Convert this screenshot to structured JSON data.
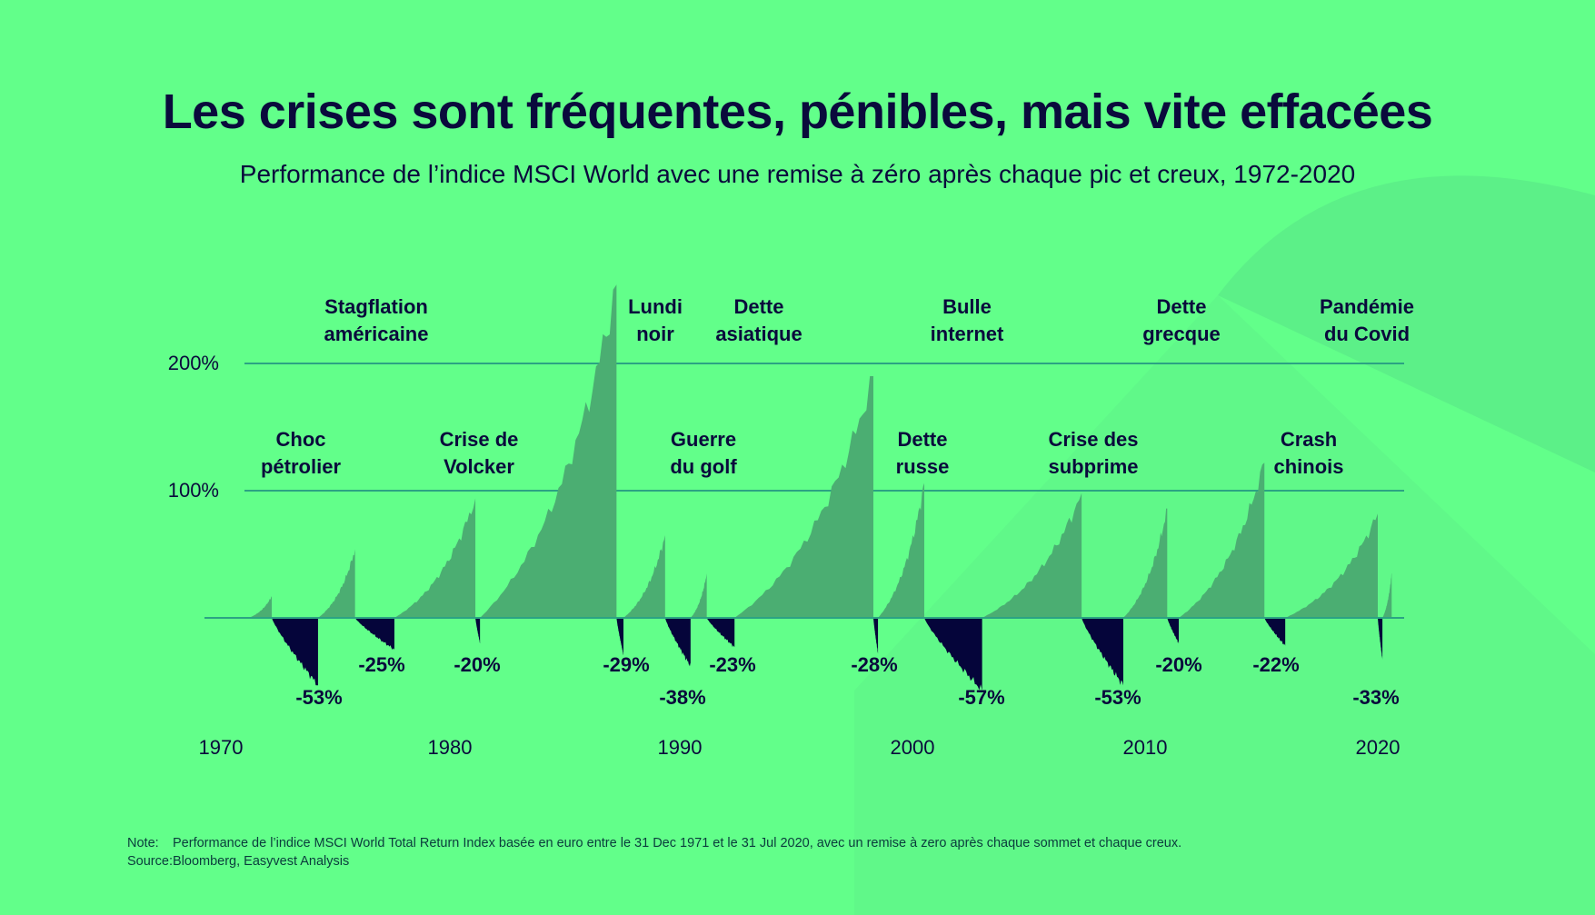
{
  "title": "Les crises sont fréquentes, pénibles, mais vite effacées",
  "subtitle": "Performance de l’indice MSCI World avec une remise à zéro après chaque pic et creux, 1972-2020",
  "colors": {
    "background": "#62ff8a",
    "rise": "#4bae72",
    "drawdown": "#05053a",
    "grid": "#2ba383",
    "text": "#0a0a3c"
  },
  "chart_data": {
    "type": "area",
    "title": "",
    "xlabel": "",
    "ylabel": "",
    "xlim": [
      1970,
      2021
    ],
    "ylim": [
      -60,
      270
    ],
    "x_ticks": [
      "1970",
      "1980",
      "1990",
      "2000",
      "2010",
      "2020"
    ],
    "y_ticks": [
      "100%",
      "200%"
    ],
    "y_tick_values": [
      100,
      200
    ],
    "grid": "horizontal",
    "segments": [
      {
        "start": 1971.2,
        "end": 1972.2,
        "value": 17
      },
      {
        "start": 1972.2,
        "end": 1974.2,
        "value": -53
      },
      {
        "start": 1974.2,
        "end": 1975.8,
        "value": 54
      },
      {
        "start": 1975.8,
        "end": 1977.5,
        "value": -25
      },
      {
        "start": 1977.5,
        "end": 1981.0,
        "value": 94
      },
      {
        "start": 1981.0,
        "end": 1981.2,
        "value": -20
      },
      {
        "start": 1981.2,
        "end": 1987.1,
        "value": 262
      },
      {
        "start": 1987.1,
        "end": 1987.4,
        "value": -29
      },
      {
        "start": 1987.4,
        "end": 1989.2,
        "value": 65
      },
      {
        "start": 1989.2,
        "end": 1990.3,
        "value": -38
      },
      {
        "start": 1990.3,
        "end": 1991.0,
        "value": 35
      },
      {
        "start": 1991.0,
        "end": 1992.2,
        "value": -23
      },
      {
        "start": 1992.2,
        "end": 1998.2,
        "value": 190
      },
      {
        "start": 1998.2,
        "end": 1998.4,
        "value": -28
      },
      {
        "start": 1998.4,
        "end": 2000.4,
        "value": 106
      },
      {
        "start": 2000.4,
        "end": 2002.9,
        "value": -57
      },
      {
        "start": 2002.9,
        "end": 2007.2,
        "value": 98
      },
      {
        "start": 2007.2,
        "end": 2009.0,
        "value": -53
      },
      {
        "start": 2009.0,
        "end": 2010.9,
        "value": 86
      },
      {
        "start": 2010.9,
        "end": 2011.4,
        "value": -20
      },
      {
        "start": 2011.4,
        "end": 2015.1,
        "value": 122
      },
      {
        "start": 2015.1,
        "end": 2016.0,
        "value": -22
      },
      {
        "start": 2016.0,
        "end": 2020.0,
        "value": 82
      },
      {
        "start": 2020.0,
        "end": 2020.2,
        "value": -33
      },
      {
        "start": 2020.2,
        "end": 2020.6,
        "value": 35
      }
    ],
    "annotations": [
      {
        "l1": "Stagflation",
        "l2": "américaine"
      },
      {
        "l1": "Lundi",
        "l2": "noir"
      },
      {
        "l1": "Dette",
        "l2": "asiatique"
      },
      {
        "l1": "Bulle",
        "l2": "internet"
      },
      {
        "l1": "Dette",
        "l2": "grecque"
      },
      {
        "l1": "Pandémie",
        "l2": "du Covid"
      },
      {
        "l1": "Choc",
        "l2": "pétrolier"
      },
      {
        "l1": "Crise de",
        "l2": "Volcker"
      },
      {
        "l1": "Guerre",
        "l2": "du golf"
      },
      {
        "l1": "Dette",
        "l2": "russe"
      },
      {
        "l1": "Crise des",
        "l2": "subprime"
      },
      {
        "l1": "Crash",
        "l2": "chinois"
      }
    ],
    "drawdown_labels": [
      "-53%",
      "-25%",
      "-20%",
      "-29%",
      "-38%",
      "-23%",
      "-28%",
      "-57%",
      "-53%",
      "-20%",
      "-22%",
      "-33%"
    ]
  },
  "footer": {
    "note_key": "Note:",
    "note": "Performance de l’indice MSCI World Total Return Index basée en euro entre le 31 Dec 1971 et le 31 Jul 2020, avec un remise à zero après chaque sommet et chaque creux.",
    "source_key": "Source:",
    "source": "Bloomberg, Easyvest Analysis"
  }
}
